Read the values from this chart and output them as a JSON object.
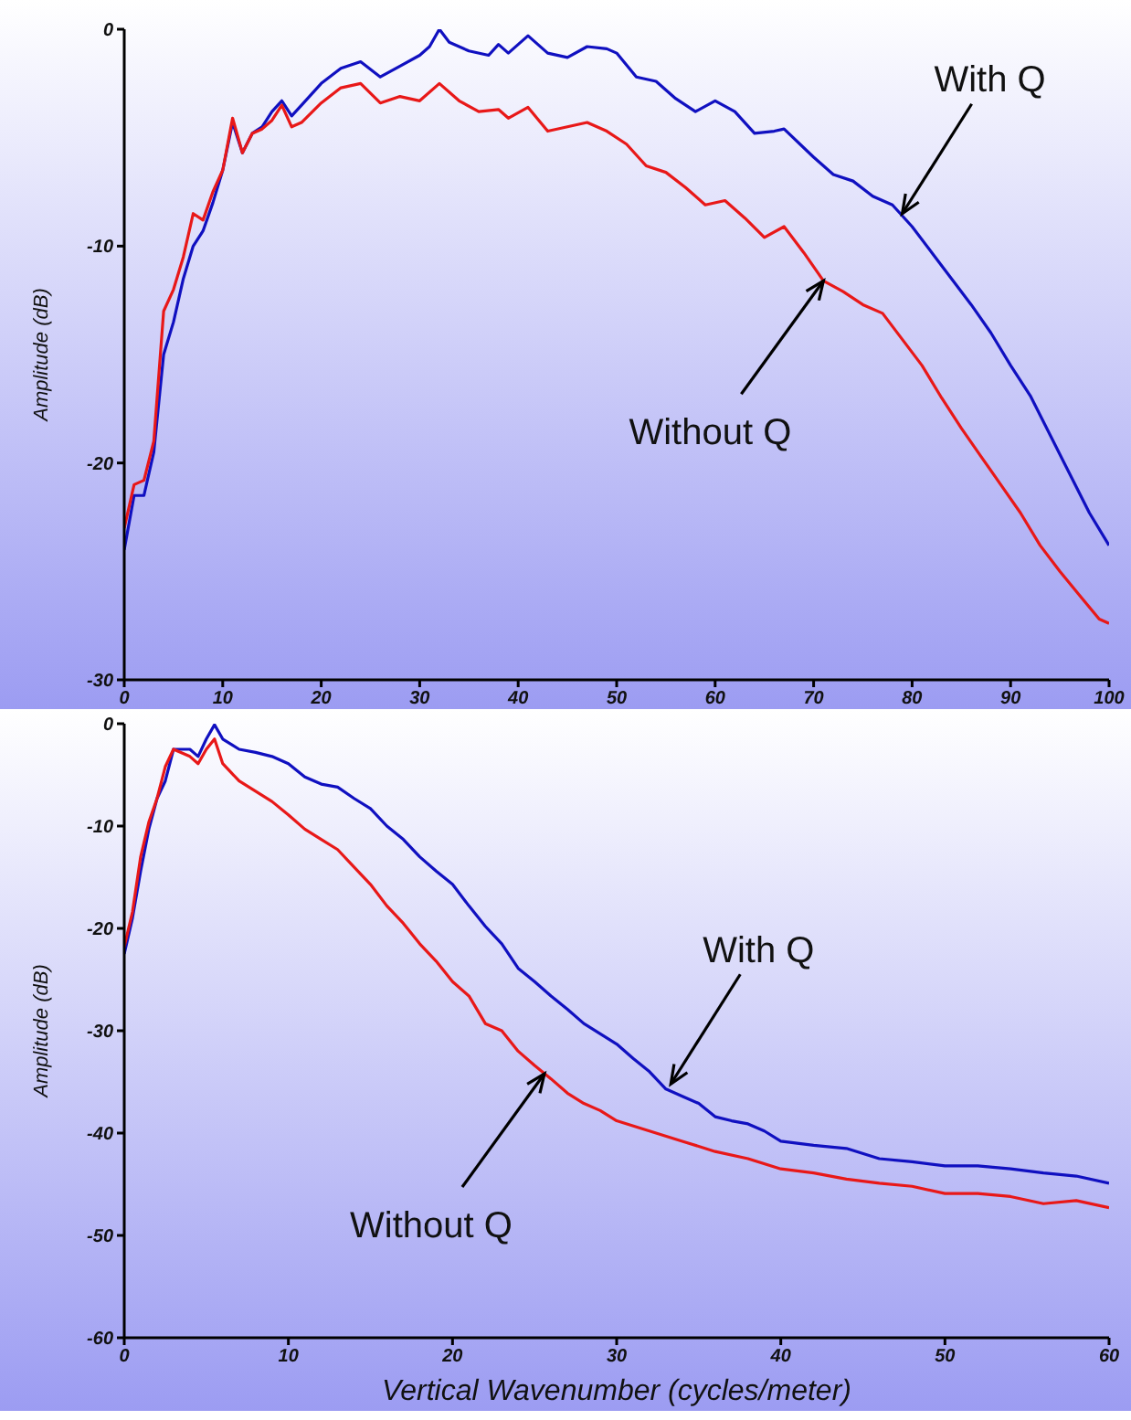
{
  "chart_data": [
    {
      "type": "line",
      "ylabel": "Amplitude (dB)",
      "xlim": [
        0,
        100
      ],
      "xticks": [
        0,
        10,
        20,
        30,
        40,
        50,
        60,
        70,
        80,
        90,
        100
      ],
      "ylim": [
        -30,
        0
      ],
      "yticks": [
        0,
        -10,
        -20,
        -30
      ],
      "grid": false,
      "legend": false,
      "annotations": [
        {
          "text": "With Q",
          "x": 79,
          "y": -8.5
        },
        {
          "text": "Without Q",
          "x": 71,
          "y": -11.6
        }
      ],
      "series": [
        {
          "color": "#1010c0",
          "x": [
            0,
            1,
            2,
            3,
            4,
            5,
            6,
            7,
            8,
            9,
            10,
            11,
            12,
            13,
            14,
            15,
            16,
            17,
            18,
            20,
            22,
            24,
            26,
            28,
            30,
            31,
            32,
            33,
            35,
            37,
            38,
            39,
            41,
            43,
            45,
            47,
            49,
            50,
            52,
            54,
            56,
            58,
            60,
            62,
            64,
            66,
            67,
            70,
            72,
            74,
            76,
            78,
            80,
            82,
            84,
            86,
            88,
            90,
            92,
            94,
            96,
            98,
            100
          ],
          "values": [
            -24,
            -21.5,
            -21.5,
            -19.5,
            -15,
            -13.5,
            -11.5,
            -10,
            -9.3,
            -8,
            -6.5,
            -4.3,
            -5.7,
            -4.8,
            -4.5,
            -3.8,
            -3.3,
            -4,
            -3.5,
            -2.5,
            -1.8,
            -1.5,
            -2.2,
            -1.7,
            -1.2,
            -0.8,
            0,
            -0.6,
            -1,
            -1.2,
            -0.7,
            -1.1,
            -0.3,
            -1.1,
            -1.3,
            -0.8,
            -0.9,
            -1.1,
            -2.2,
            -2.4,
            -3.2,
            -3.8,
            -3.3,
            -3.8,
            -4.8,
            -4.7,
            -4.6,
            -5.9,
            -6.7,
            -7,
            -7.7,
            -8.1,
            -9.1,
            -10.3,
            -11.5,
            -12.7,
            -14,
            -15.5,
            -16.9,
            -18.7,
            -20.5,
            -22.3,
            -23.8
          ]
        },
        {
          "color": "#e81818",
          "x": [
            0,
            1,
            2,
            3,
            4,
            5,
            6,
            7,
            8,
            9,
            10,
            11,
            12,
            13,
            14,
            15,
            16,
            17,
            18,
            20,
            22,
            24,
            26,
            28,
            30,
            32,
            34,
            36,
            38,
            39,
            41,
            43,
            45,
            47,
            49,
            51,
            53,
            55,
            57,
            59,
            61,
            63,
            65,
            67,
            69,
            71,
            73,
            75,
            77,
            79,
            81,
            83,
            85,
            87,
            89,
            91,
            93,
            95,
            97,
            99,
            100
          ],
          "values": [
            -23,
            -21,
            -20.8,
            -19,
            -13,
            -12,
            -10.5,
            -8.5,
            -8.8,
            -7.5,
            -6.5,
            -4.1,
            -5.7,
            -4.8,
            -4.6,
            -4.2,
            -3.5,
            -4.5,
            -4.3,
            -3.4,
            -2.7,
            -2.5,
            -3.4,
            -3.1,
            -3.3,
            -2.5,
            -3.3,
            -3.8,
            -3.7,
            -4.1,
            -3.6,
            -4.7,
            -4.5,
            -4.3,
            -4.7,
            -5.3,
            -6.3,
            -6.6,
            -7.3,
            -8.1,
            -7.9,
            -8.7,
            -9.6,
            -9.1,
            -10.3,
            -11.6,
            -12.1,
            -12.7,
            -13.1,
            -14.3,
            -15.5,
            -17,
            -18.4,
            -19.7,
            -21,
            -22.3,
            -23.8,
            -25,
            -26.1,
            -27.2,
            -27.4
          ]
        }
      ]
    },
    {
      "type": "line",
      "xlabel": "Vertical Wavenumber (cycles/meter)",
      "ylabel": "Amplitude (dB)",
      "xlim": [
        0,
        60
      ],
      "xticks": [
        0,
        10,
        20,
        30,
        40,
        50,
        60
      ],
      "ylim": [
        -60,
        0
      ],
      "yticks": [
        0,
        -10,
        -20,
        -30,
        -40,
        -50,
        -60
      ],
      "grid": false,
      "legend": false,
      "annotations": [
        {
          "text": "With Q",
          "x": 33.3,
          "y": -35.2
        },
        {
          "text": "Without Q",
          "x": 25.6,
          "y": -34.2
        }
      ],
      "series": [
        {
          "color": "#1010c0",
          "x": [
            0,
            0.5,
            1,
            1.5,
            2,
            2.5,
            3,
            4,
            4.5,
            5,
            5.5,
            6,
            7,
            8,
            9,
            10,
            11,
            12,
            13,
            14,
            15,
            16,
            17,
            18,
            19,
            20,
            21,
            22,
            23,
            24,
            25,
            26,
            27,
            28,
            29,
            30,
            31,
            32,
            33,
            34,
            35,
            36,
            37,
            38,
            39,
            40,
            42,
            44,
            46,
            48,
            50,
            52,
            54,
            56,
            58,
            60
          ],
          "values": [
            -22.5,
            -19,
            -14.4,
            -10.3,
            -7.3,
            -5.6,
            -2.5,
            -2.5,
            -3.2,
            -1.5,
            -0.1,
            -1.5,
            -2.5,
            -2.8,
            -3.2,
            -3.9,
            -5.2,
            -5.9,
            -6.2,
            -7.3,
            -8.3,
            -10,
            -11.3,
            -13,
            -14.4,
            -15.7,
            -17.8,
            -19.8,
            -21.5,
            -23.9,
            -25.2,
            -26.6,
            -27.9,
            -29.3,
            -30.3,
            -31.3,
            -32.7,
            -34,
            -35.7,
            -36.4,
            -37.1,
            -38.4,
            -38.8,
            -39.1,
            -39.8,
            -40.8,
            -41.2,
            -41.5,
            -42.5,
            -42.8,
            -43.2,
            -43.2,
            -43.5,
            -43.9,
            -44.2,
            -44.9
          ]
        },
        {
          "color": "#e81818",
          "x": [
            0,
            0.5,
            1,
            1.5,
            2,
            2.5,
            3,
            4,
            4.5,
            5,
            5.5,
            6,
            7,
            8,
            9,
            10,
            11,
            12,
            13,
            14,
            15,
            16,
            17,
            18,
            19,
            20,
            21,
            22,
            23,
            24,
            25,
            26,
            27,
            28,
            29,
            30,
            32,
            34,
            36,
            38,
            40,
            42,
            44,
            46,
            48,
            50,
            52,
            54,
            56,
            58,
            60
          ],
          "values": [
            -21.8,
            -18.4,
            -13,
            -9.6,
            -7.3,
            -4.2,
            -2.5,
            -3.2,
            -3.9,
            -2.5,
            -1.5,
            -3.9,
            -5.6,
            -6.6,
            -7.6,
            -8.9,
            -10.3,
            -11.3,
            -12.3,
            -14,
            -15.7,
            -17.8,
            -19.5,
            -21.5,
            -23.2,
            -25.2,
            -26.6,
            -29.3,
            -30,
            -32,
            -33.4,
            -34.7,
            -36.1,
            -37.1,
            -37.8,
            -38.8,
            -39.8,
            -40.8,
            -41.8,
            -42.5,
            -43.5,
            -43.9,
            -44.5,
            -44.9,
            -45.2,
            -45.9,
            -45.9,
            -46.2,
            -46.9,
            -46.6,
            -47.3
          ]
        }
      ]
    }
  ]
}
